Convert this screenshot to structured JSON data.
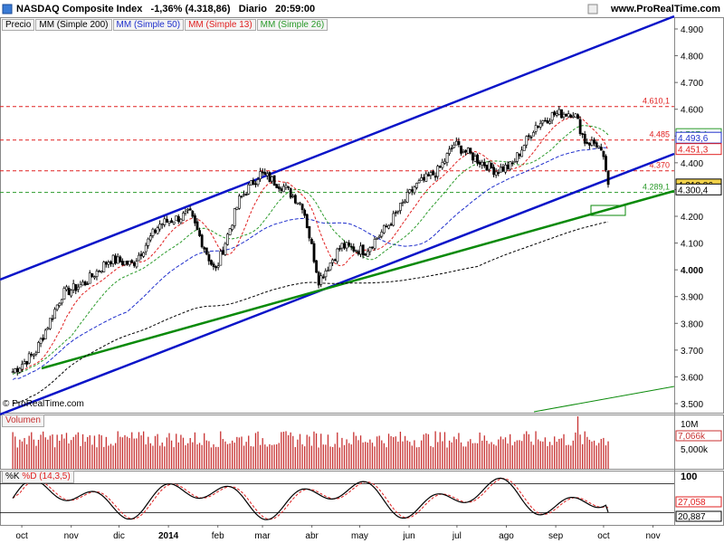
{
  "header": {
    "title": "NASDAQ Composite Index",
    "change": "-1,36% (4.318,86)",
    "period": "Diario",
    "time": "20:59:00",
    "site": "www.ProRealTime.com"
  },
  "indicators": {
    "price": "Precio",
    "mm200": "MM (Simple 200)",
    "mm50": "MM (Simple 50)",
    "mm13": "MM (Simple 13)",
    "mm26": "MM (Simple 26)"
  },
  "copyright": "© ProRealTime.com",
  "volume_panel": {
    "label": "Volumen"
  },
  "stoch_panel": {
    "label_k": "%K",
    "label_d": "%D (14,3,5)"
  },
  "colors": {
    "candle": "#000000",
    "mm200": "#000000",
    "mm50": "#1f2fcc",
    "mm13": "#e02020",
    "mm26": "#2a9a2a",
    "trend_blue": "#0a14c8",
    "trend_green": "#0a8a0a",
    "volume": "#c83232",
    "current_price_bg": "#f2d24a"
  },
  "chart_data": {
    "type": "candlestick",
    "title": "NASDAQ Composite Index",
    "time_axis": {
      "labels": [
        "oct",
        "nov",
        "dic",
        "2014",
        "feb",
        "mar",
        "abr",
        "may",
        "jun",
        "jul",
        "ago",
        "sep",
        "oct",
        "nov"
      ]
    },
    "price_axis": {
      "range": [
        3450,
        4950
      ],
      "ticks": [
        "4.900",
        "4.800",
        "4.700",
        "4.600",
        "4.500",
        "4.400",
        "4.300",
        "4.200",
        "4.100",
        "4.000",
        "3.900",
        "3.800",
        "3.700",
        "3.600",
        "3.500"
      ]
    },
    "key_points": [
      {
        "date": "2013-10-01",
        "close": 3620
      },
      {
        "date": "2013-10-15",
        "close": 3690
      },
      {
        "date": "2013-11-01",
        "close": 3910
      },
      {
        "date": "2013-11-15",
        "close": 3950
      },
      {
        "date": "2013-12-01",
        "close": 4040
      },
      {
        "date": "2013-12-15",
        "close": 4020
      },
      {
        "date": "2014-01-01",
        "close": 4170
      },
      {
        "date": "2014-01-20",
        "close": 4210
      },
      {
        "date": "2014-02-05",
        "close": 3990
      },
      {
        "date": "2014-02-20",
        "close": 4260
      },
      {
        "date": "2014-03-05",
        "close": 4360
      },
      {
        "date": "2014-03-20",
        "close": 4310
      },
      {
        "date": "2014-04-01",
        "close": 4240
      },
      {
        "date": "2014-04-11",
        "close": 3960
      },
      {
        "date": "2014-04-25",
        "close": 4090
      },
      {
        "date": "2014-05-10",
        "close": 4070
      },
      {
        "date": "2014-05-25",
        "close": 4170
      },
      {
        "date": "2014-06-10",
        "close": 4310
      },
      {
        "date": "2014-06-25",
        "close": 4370
      },
      {
        "date": "2014-07-05",
        "close": 4470
      },
      {
        "date": "2014-07-20",
        "close": 4410
      },
      {
        "date": "2014-07-31",
        "close": 4370
      },
      {
        "date": "2014-08-10",
        "close": 4390
      },
      {
        "date": "2014-08-25",
        "close": 4540
      },
      {
        "date": "2014-09-05",
        "close": 4580
      },
      {
        "date": "2014-09-18",
        "close": 4590
      },
      {
        "date": "2014-09-25",
        "close": 4480
      },
      {
        "date": "2014-10-03",
        "close": 4470
      },
      {
        "date": "2014-10-08",
        "close": 4380
      },
      {
        "date": "2014-10-10",
        "close": 4318.86
      }
    ],
    "horizontal_levels": [
      {
        "value": 4610.1,
        "label": "4.610,1",
        "color": "#e02020"
      },
      {
        "value": 4485,
        "label": "4.485",
        "color": "#e02020"
      },
      {
        "value": 4370,
        "label": "4.370",
        "color": "#e02020"
      },
      {
        "value": 4289.1,
        "label": "4.289,1",
        "color": "#2a9a2a"
      }
    ],
    "price_tags": [
      {
        "value": 4507.1,
        "label": "4.507,1",
        "color": "#2a9a2a"
      },
      {
        "value": 4493.6,
        "label": "4.493,6",
        "color": "#1f2fcc"
      },
      {
        "value": 4451.3,
        "label": "4.451,3",
        "color": "#e02020"
      },
      {
        "value": 4318.86,
        "label": "4.318,86",
        "color": "#000000"
      },
      {
        "value": 4300.4,
        "label": "4.300,4",
        "color": "#000000"
      }
    ],
    "channel": {
      "lower": [
        [
          "2013-10-01",
          3470
        ],
        [
          "2014-10-10",
          4340
        ]
      ],
      "upper": [
        [
          "2013-10-01",
          3960
        ],
        [
          "2014-10-10",
          4950
        ]
      ],
      "support_green": [
        [
          "2013-10-10",
          3640
        ],
        [
          "2014-10-10",
          4300
        ]
      ]
    },
    "volume": {
      "labels": [
        "10M",
        "7,066k",
        "5,000k"
      ],
      "last": 7066000
    },
    "stochastic": {
      "range": [
        0,
        100
      ],
      "labels": [
        "100",
        "27,058",
        "20,887"
      ],
      "k_last": 20.887,
      "d_last": 27.058
    }
  }
}
